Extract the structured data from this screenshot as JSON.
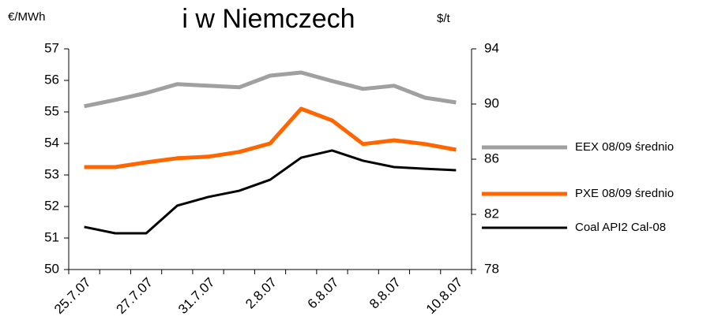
{
  "chart_data": {
    "type": "line",
    "title": "i w Niemczech",
    "y_label": "€/MWh",
    "y2_label": "$/t",
    "categories": [
      "25.7.07",
      null,
      "27.7.07",
      null,
      "31.7.07",
      null,
      "2.8.07",
      null,
      "6.8.07",
      null,
      "8.8.07",
      null,
      "10.8.07"
    ],
    "series": [
      {
        "name": "EEX 08/09 średnio",
        "color": "#a0a0a0",
        "values": [
          55.18,
          55.38,
          55.6,
          55.88,
          55.83,
          55.78,
          56.15,
          56.25,
          55.98,
          55.73,
          55.83,
          55.45,
          55.3
        ]
      },
      {
        "name": "PXE 08/09 średnio",
        "color": "#ff6600",
        "values": [
          53.25,
          53.25,
          53.4,
          53.53,
          53.58,
          53.73,
          54.0,
          55.1,
          54.73,
          53.98,
          54.1,
          53.98,
          53.8
        ]
      },
      {
        "name": "Coal API2 Cal-08",
        "color": "#000000",
        "axis": "y2",
        "values": [
          81.09,
          80.63,
          80.63,
          82.63,
          83.26,
          83.71,
          84.51,
          86.11,
          86.63,
          85.89,
          85.43,
          85.31,
          85.2
        ]
      }
    ],
    "ylim": [
      50,
      57
    ],
    "yticks": [
      50,
      51,
      52,
      53,
      54,
      55,
      56,
      57
    ],
    "y2lim": [
      78,
      94
    ],
    "y2ticks": [
      78,
      82,
      86,
      90,
      94
    ],
    "legend": "right"
  }
}
